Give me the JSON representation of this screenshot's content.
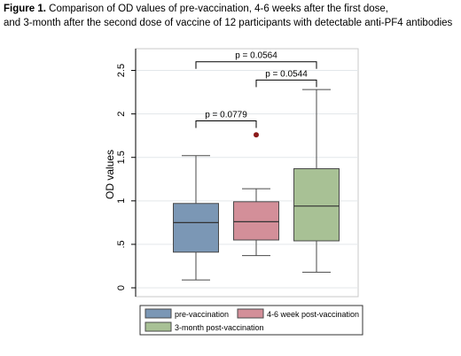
{
  "caption": {
    "label": "Figure 1.",
    "line1": " Comparison of OD values of pre-vaccination, 4-6 weeks after the first dose,",
    "line2": "and 3-month after the second dose of vaccine of 12 participants with detectable anti-PF4 antibodies"
  },
  "chart_data": {
    "type": "box",
    "ylabel": "OD values",
    "ylim": [
      0,
      2.75
    ],
    "yticks": [
      {
        "value": 0,
        "label": "0"
      },
      {
        "value": 0.5,
        "label": ".5"
      },
      {
        "value": 1,
        "label": "1"
      },
      {
        "value": 1.5,
        "label": "1.5"
      },
      {
        "value": 2,
        "label": "2"
      },
      {
        "value": 2.5,
        "label": "2.5"
      }
    ],
    "grid": true,
    "series": [
      {
        "name": "pre-vaccination",
        "color": "#7b97b5",
        "whisker_low": 0.09,
        "q1": 0.41,
        "median": 0.75,
        "q3": 0.97,
        "whisker_high": 1.52,
        "outliers": []
      },
      {
        "name": "4-6 week post-vaccination",
        "color": "#d38f99",
        "whisker_low": 0.37,
        "q1": 0.55,
        "median": 0.76,
        "q3": 0.99,
        "whisker_high": 1.14,
        "outliers": [
          1.76
        ]
      },
      {
        "name": "3-month post-vaccination",
        "color": "#a8c195",
        "whisker_low": 0.18,
        "q1": 0.54,
        "median": 0.94,
        "q3": 1.37,
        "whisker_high": 2.28,
        "outliers": []
      }
    ],
    "outlier_color": "#8b1a1a",
    "annotations": [
      {
        "text": "p = 0.0779",
        "from": 0,
        "to": 1,
        "y": 1.92
      },
      {
        "text": "p = 0.0564",
        "from": 0,
        "to": 2,
        "y": 2.6
      },
      {
        "text": "p = 0.0544",
        "from": 1,
        "to": 2,
        "y": 2.39
      }
    ],
    "legend": {
      "position": "bottom"
    }
  }
}
